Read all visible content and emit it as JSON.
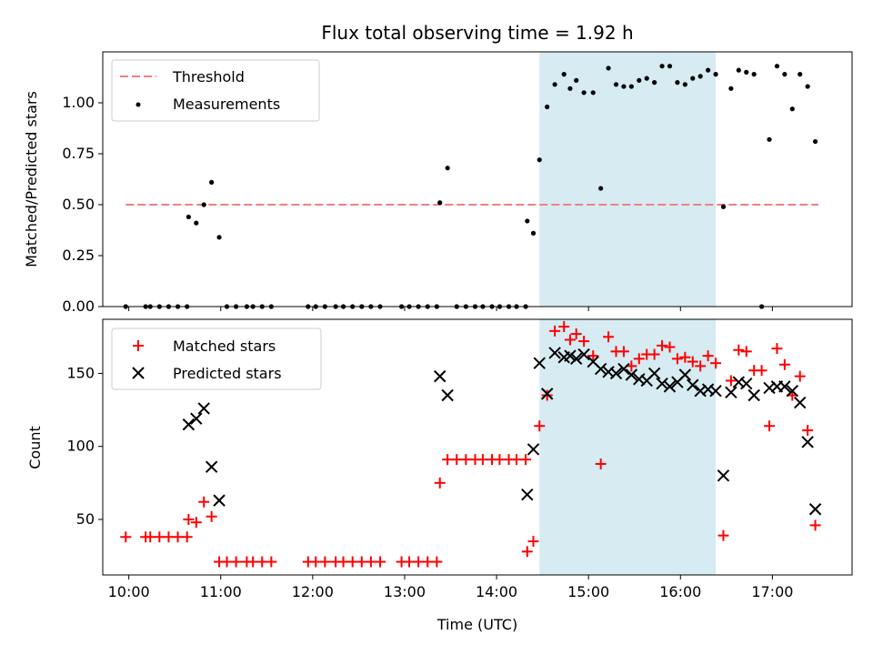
{
  "title": "Flux total observing time = 1.92 h",
  "xlabel": "Time (UTC)",
  "x_ticks": [
    "10:00",
    "11:00",
    "12:00",
    "13:00",
    "14:00",
    "15:00",
    "16:00",
    "17:00"
  ],
  "colors": {
    "threshold": "#f08080",
    "measurement": "#000000",
    "matched": "#ff0000",
    "predicted": "#000000",
    "shade": "#add8e6"
  },
  "chart_data": [
    {
      "type": "scatter",
      "panel": "top",
      "ylabel": "Matched/Predicted stars",
      "ylim": [
        0,
        1.25
      ],
      "y_ticks": [
        "0.00",
        "0.25",
        "0.50",
        "0.75",
        "1.00"
      ],
      "xlim": [
        "09:43",
        "17:52"
      ],
      "shaded_interval": [
        "14:28",
        "16:23"
      ],
      "legend": "top-left",
      "threshold": {
        "name": "Threshold",
        "y": 0.5,
        "x_range": [
          "09:58",
          "17:30"
        ]
      },
      "series": [
        {
          "name": "Measurements",
          "points": [
            [
              "09:58",
              0
            ],
            [
              "10:11",
              0
            ],
            [
              "10:14",
              0
            ],
            [
              "10:20",
              0
            ],
            [
              "10:26",
              0
            ],
            [
              "10:32",
              0
            ],
            [
              "10:38",
              0
            ],
            [
              "10:39",
              0.44
            ],
            [
              "10:44",
              0.41
            ],
            [
              "10:49",
              0.5
            ],
            [
              "10:54",
              0.61
            ],
            [
              "10:59",
              0.34
            ],
            [
              "11:04",
              0
            ],
            [
              "11:10",
              0
            ],
            [
              "11:17",
              0
            ],
            [
              "11:21",
              0
            ],
            [
              "11:27",
              0
            ],
            [
              "11:33",
              0
            ],
            [
              "11:57",
              0
            ],
            [
              "12:02",
              0
            ],
            [
              "12:08",
              0
            ],
            [
              "12:15",
              0
            ],
            [
              "12:20",
              0
            ],
            [
              "12:26",
              0
            ],
            [
              "12:32",
              0
            ],
            [
              "12:38",
              0
            ],
            [
              "12:44",
              0
            ],
            [
              "12:58",
              0
            ],
            [
              "13:03",
              0
            ],
            [
              "13:09",
              0
            ],
            [
              "13:15",
              0
            ],
            [
              "13:21",
              0
            ],
            [
              "13:23",
              0.51
            ],
            [
              "13:28",
              0.68
            ],
            [
              "13:34",
              0
            ],
            [
              "13:40",
              0
            ],
            [
              "13:46",
              0
            ],
            [
              "13:51",
              0
            ],
            [
              "13:57",
              0
            ],
            [
              "14:02",
              0
            ],
            [
              "14:08",
              0
            ],
            [
              "14:13",
              0
            ],
            [
              "14:19",
              0
            ],
            [
              "14:20",
              0.42
            ],
            [
              "14:24",
              0.36
            ],
            [
              "14:28",
              0.72
            ],
            [
              "14:33",
              0.98
            ],
            [
              "14:38",
              1.09
            ],
            [
              "14:44",
              1.14
            ],
            [
              "14:48",
              1.07
            ],
            [
              "14:52",
              1.11
            ],
            [
              "14:57",
              1.05
            ],
            [
              "15:03",
              1.05
            ],
            [
              "15:08",
              0.58
            ],
            [
              "15:13",
              1.17
            ],
            [
              "15:18",
              1.09
            ],
            [
              "15:23",
              1.08
            ],
            [
              "15:28",
              1.08
            ],
            [
              "15:33",
              1.11
            ],
            [
              "15:38",
              1.12
            ],
            [
              "15:43",
              1.1
            ],
            [
              "15:48",
              1.18
            ],
            [
              "15:53",
              1.18
            ],
            [
              "15:58",
              1.1
            ],
            [
              "16:03",
              1.09
            ],
            [
              "16:08",
              1.12
            ],
            [
              "16:13",
              1.13
            ],
            [
              "16:18",
              1.16
            ],
            [
              "16:23",
              1.14
            ],
            [
              "16:28",
              0.49
            ],
            [
              "16:33",
              1.07
            ],
            [
              "16:38",
              1.16
            ],
            [
              "16:43",
              1.15
            ],
            [
              "16:48",
              1.14
            ],
            [
              "16:53",
              0
            ],
            [
              "16:58",
              0.82
            ],
            [
              "17:03",
              1.18
            ],
            [
              "17:08",
              1.14
            ],
            [
              "17:13",
              0.97
            ],
            [
              "17:18",
              1.14
            ],
            [
              "17:23",
              1.08
            ],
            [
              "17:28",
              0.81
            ]
          ]
        }
      ]
    },
    {
      "type": "scatter",
      "panel": "bottom",
      "ylabel": "Count",
      "ylim": [
        12,
        187
      ],
      "y_ticks": [
        "50",
        "100",
        "150"
      ],
      "xlim": [
        "09:43",
        "17:52"
      ],
      "shaded_interval": [
        "14:28",
        "16:23"
      ],
      "legend": "top-left",
      "series": [
        {
          "name": "Matched stars",
          "marker": "plus",
          "points": [
            [
              "09:58",
              38
            ],
            [
              "10:11",
              38
            ],
            [
              "10:14",
              38
            ],
            [
              "10:20",
              38
            ],
            [
              "10:26",
              38
            ],
            [
              "10:32",
              38
            ],
            [
              "10:38",
              38
            ],
            [
              "10:39",
              50
            ],
            [
              "10:44",
              48
            ],
            [
              "10:49",
              62
            ],
            [
              "10:54",
              52
            ],
            [
              "10:59",
              21
            ],
            [
              "11:04",
              21
            ],
            [
              "11:10",
              21
            ],
            [
              "11:17",
              21
            ],
            [
              "11:21",
              21
            ],
            [
              "11:27",
              21
            ],
            [
              "11:33",
              21
            ],
            [
              "11:57",
              21
            ],
            [
              "12:02",
              21
            ],
            [
              "12:08",
              21
            ],
            [
              "12:15",
              21
            ],
            [
              "12:20",
              21
            ],
            [
              "12:26",
              21
            ],
            [
              "12:32",
              21
            ],
            [
              "12:38",
              21
            ],
            [
              "12:44",
              21
            ],
            [
              "12:58",
              21
            ],
            [
              "13:03",
              21
            ],
            [
              "13:09",
              21
            ],
            [
              "13:15",
              21
            ],
            [
              "13:21",
              21
            ],
            [
              "13:23",
              75
            ],
            [
              "13:28",
              91
            ],
            [
              "13:34",
              91
            ],
            [
              "13:40",
              91
            ],
            [
              "13:46",
              91
            ],
            [
              "13:51",
              91
            ],
            [
              "13:57",
              91
            ],
            [
              "14:02",
              91
            ],
            [
              "14:08",
              91
            ],
            [
              "14:13",
              91
            ],
            [
              "14:19",
              91
            ],
            [
              "14:20",
              28
            ],
            [
              "14:24",
              35
            ],
            [
              "14:28",
              114
            ],
            [
              "14:33",
              135
            ],
            [
              "14:38",
              179
            ],
            [
              "14:44",
              182
            ],
            [
              "14:48",
              173
            ],
            [
              "14:52",
              177
            ],
            [
              "14:57",
              172
            ],
            [
              "15:03",
              162
            ],
            [
              "15:08",
              88
            ],
            [
              "15:13",
              175
            ],
            [
              "15:18",
              165
            ],
            [
              "15:23",
              165
            ],
            [
              "15:28",
              155
            ],
            [
              "15:33",
              160
            ],
            [
              "15:38",
              163
            ],
            [
              "15:43",
              163
            ],
            [
              "15:48",
              169
            ],
            [
              "15:53",
              168
            ],
            [
              "15:58",
              160
            ],
            [
              "16:03",
              161
            ],
            [
              "16:08",
              158
            ],
            [
              "16:13",
              155
            ],
            [
              "16:18",
              162
            ],
            [
              "16:23",
              157
            ],
            [
              "16:28",
              39
            ],
            [
              "16:33",
              145
            ],
            [
              "16:38",
              166
            ],
            [
              "16:43",
              165
            ],
            [
              "16:48",
              152
            ],
            [
              "16:53",
              152
            ],
            [
              "16:58",
              114
            ],
            [
              "17:03",
              167
            ],
            [
              "17:08",
              156
            ],
            [
              "17:13",
              135
            ],
            [
              "17:18",
              148
            ],
            [
              "17:23",
              111
            ],
            [
              "17:28",
              46
            ]
          ]
        },
        {
          "name": "Predicted stars",
          "marker": "x",
          "points": [
            [
              "10:39",
              115
            ],
            [
              "10:44",
              119
            ],
            [
              "10:49",
              126
            ],
            [
              "10:54",
              86
            ],
            [
              "10:59",
              63
            ],
            [
              "13:23",
              148
            ],
            [
              "13:28",
              135
            ],
            [
              "14:20",
              67
            ],
            [
              "14:24",
              98
            ],
            [
              "14:28",
              157
            ],
            [
              "14:33",
              136
            ],
            [
              "14:38",
              164
            ],
            [
              "14:44",
              161
            ],
            [
              "14:48",
              162
            ],
            [
              "14:52",
              160
            ],
            [
              "14:57",
              163
            ],
            [
              "15:03",
              158
            ],
            [
              "15:08",
              153
            ],
            [
              "15:13",
              151
            ],
            [
              "15:18",
              150
            ],
            [
              "15:23",
              153
            ],
            [
              "15:28",
              149
            ],
            [
              "15:33",
              146
            ],
            [
              "15:38",
              145
            ],
            [
              "15:43",
              150
            ],
            [
              "15:48",
              143
            ],
            [
              "15:53",
              141
            ],
            [
              "15:58",
              144
            ],
            [
              "16:03",
              149
            ],
            [
              "16:08",
              142
            ],
            [
              "16:13",
              138
            ],
            [
              "16:18",
              139
            ],
            [
              "16:23",
              138
            ],
            [
              "16:28",
              80
            ],
            [
              "16:33",
              137
            ],
            [
              "16:38",
              144
            ],
            [
              "16:43",
              143
            ],
            [
              "16:48",
              135
            ],
            [
              "16:58",
              140
            ],
            [
              "17:03",
              141
            ],
            [
              "17:08",
              141
            ],
            [
              "17:13",
              138
            ],
            [
              "17:18",
              130
            ],
            [
              "17:23",
              103
            ],
            [
              "17:28",
              57
            ]
          ]
        }
      ]
    }
  ]
}
